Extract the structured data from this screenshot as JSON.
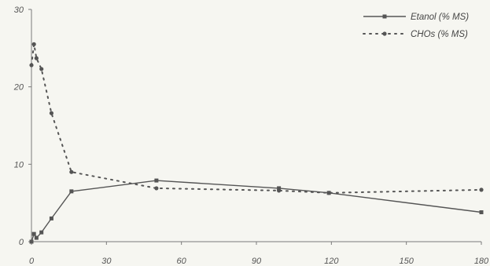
{
  "chart_data": {
    "type": "line",
    "title": "",
    "xlabel": "",
    "ylabel": "",
    "xlim": [
      0,
      180
    ],
    "ylim": [
      0,
      30
    ],
    "x_ticks": [
      0,
      30,
      60,
      90,
      120,
      150,
      180
    ],
    "y_ticks": [
      0,
      10,
      20,
      30
    ],
    "grid": false,
    "legend_position": "top-right",
    "series": [
      {
        "name": "Etanol (% MS)",
        "style": "solid",
        "marker": "square",
        "color": "#555555",
        "points": [
          {
            "x": 0,
            "y": 0
          },
          {
            "x": 1,
            "y": 1
          },
          {
            "x": 2,
            "y": 0.5
          },
          {
            "x": 4,
            "y": 1.2
          },
          {
            "x": 8,
            "y": 3
          },
          {
            "x": 16,
            "y": 6.5
          },
          {
            "x": 50,
            "y": 7.9
          },
          {
            "x": 99,
            "y": 6.9
          },
          {
            "x": 119,
            "y": 6.3
          },
          {
            "x": 180,
            "y": 3.8
          }
        ]
      },
      {
        "name": "CHOs (% MS)",
        "style": "dotted",
        "marker": "circle",
        "color": "#555555",
        "points": [
          {
            "x": 0,
            "y": 22.8
          },
          {
            "x": 1,
            "y": 25.5
          },
          {
            "x": 2,
            "y": 23.7
          },
          {
            "x": 4,
            "y": 22.3
          },
          {
            "x": 8,
            "y": 16.6
          },
          {
            "x": 16,
            "y": 9
          },
          {
            "x": 50,
            "y": 6.9
          },
          {
            "x": 99,
            "y": 6.6
          },
          {
            "x": 119,
            "y": 6.3
          },
          {
            "x": 180,
            "y": 6.7
          }
        ]
      }
    ]
  }
}
